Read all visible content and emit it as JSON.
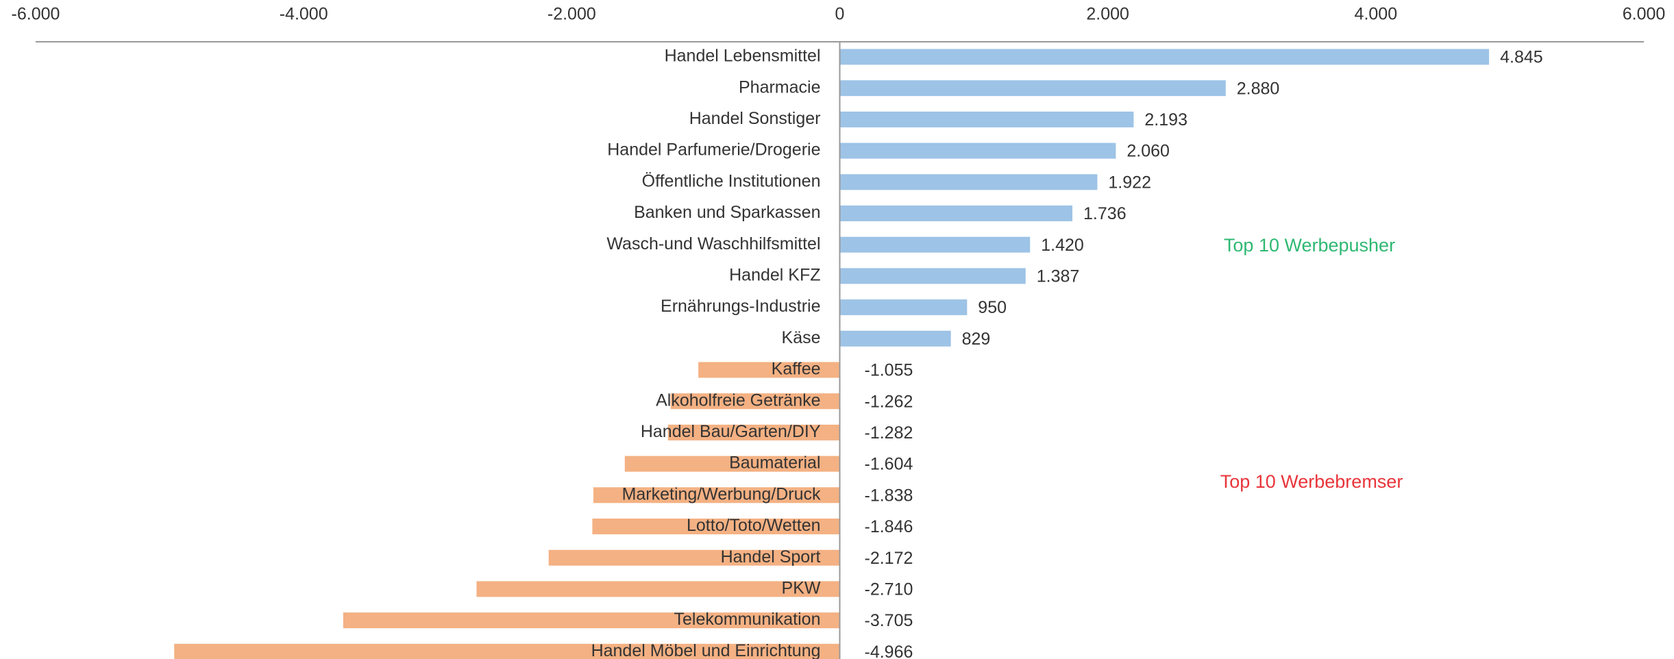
{
  "chart_data": {
    "type": "bar",
    "orientation": "horizontal",
    "categories": [
      "Handel Lebensmittel",
      "Pharmacie",
      "Handel Sonstiger",
      "Handel Parfumerie/Drogerie",
      "Öffentliche Institutionen",
      "Banken und Sparkassen",
      "Wasch-und Waschhilfsmittel",
      "Handel KFZ",
      "Ernährungs-Industrie",
      "Käse",
      "Kaffee",
      "Alkoholfreie Getränke",
      "Handel Bau/Garten/DIY",
      "Baumaterial",
      "Marketing/Werbung/Druck",
      "Lotto/Toto/Wetten",
      "Handel Sport",
      "PKW",
      "Telekommunikation",
      "Handel Möbel und Einrichtung"
    ],
    "values": [
      4845,
      2880,
      2193,
      2060,
      1922,
      1736,
      1420,
      1387,
      950,
      829,
      -1055,
      -1262,
      -1282,
      -1604,
      -1838,
      -1846,
      -2172,
      -2710,
      -3705,
      -4966
    ],
    "value_labels": [
      "4.845",
      "2.880",
      "2.193",
      "2.060",
      "1.922",
      "1.736",
      "1.420",
      "1.387",
      "950",
      "829",
      "-1.055",
      "-1.262",
      "-1.282",
      "-1.604",
      "-1.838",
      "-1.846",
      "-2.172",
      "-2.710",
      "-3.705",
      "-4.966"
    ],
    "positive_color": "#9dc3e6",
    "negative_color": "#f4b183",
    "xlim": [
      -6000,
      6000
    ],
    "xticks": [
      {
        "value": -6000,
        "label": "-6.000"
      },
      {
        "value": -4000,
        "label": "-4.000"
      },
      {
        "value": -2000,
        "label": "-2.000"
      },
      0,
      {
        "value": 2000,
        "label": "2.000"
      },
      {
        "value": 4000,
        "label": "4.000"
      },
      {
        "value": 6000,
        "label": "6.000"
      }
    ],
    "annotations": [
      {
        "text": "Top 10 Werbepusher",
        "color": "#2eb872"
      },
      {
        "text": "Top 10 Werbebremser",
        "color": "#e8343a"
      }
    ]
  }
}
